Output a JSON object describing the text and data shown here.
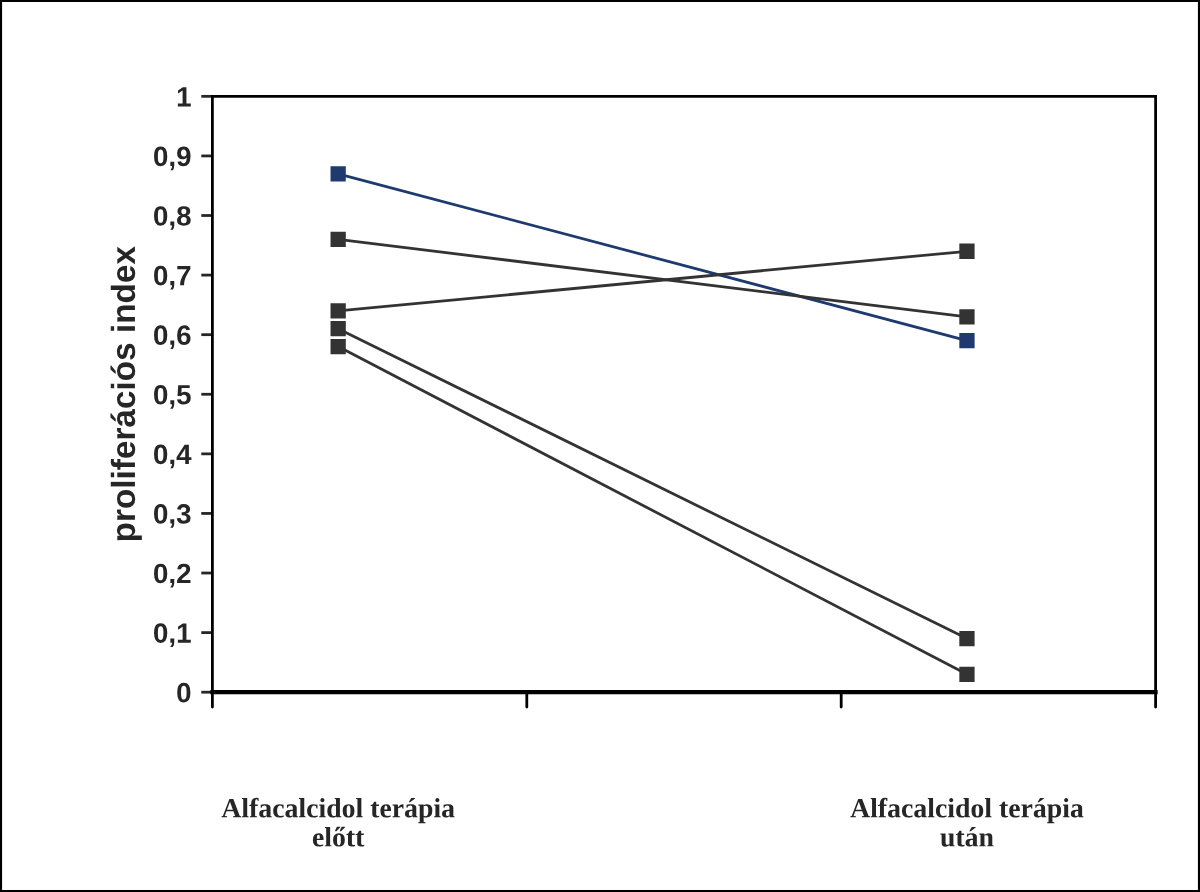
{
  "chart_data": {
    "type": "line",
    "ylabel": "proliferációs index",
    "categories": [
      "Alfacalcidol terápia\nelőtt",
      "Alfacalcidol terápia\nután"
    ],
    "series": [
      {
        "color": "#1f3a6e",
        "values": [
          0.87,
          0.59
        ]
      },
      {
        "color": "#333333",
        "values": [
          0.76,
          0.63
        ]
      },
      {
        "color": "#333333",
        "values": [
          0.64,
          0.74
        ]
      },
      {
        "color": "#333333",
        "values": [
          0.61,
          0.09
        ]
      },
      {
        "color": "#333333",
        "values": [
          0.58,
          0.03
        ]
      }
    ],
    "ylim": [
      0,
      1
    ],
    "yticks": [
      0,
      {
        "value": 0.1,
        "label": "0,1"
      },
      {
        "value": 0.2,
        "label": "0,2"
      },
      {
        "value": 0.3,
        "label": "0,3"
      },
      {
        "value": 0.4,
        "label": "0,4"
      },
      {
        "value": 0.5,
        "label": "0,5"
      },
      {
        "value": 0.6,
        "label": "0,6"
      },
      {
        "value": 0.7,
        "label": "0,7"
      },
      {
        "value": 0.8,
        "label": "0,8"
      },
      {
        "value": 0.9,
        "label": "0,9"
      },
      1
    ],
    "marker": "square",
    "line_style": "solid",
    "grid": false
  }
}
